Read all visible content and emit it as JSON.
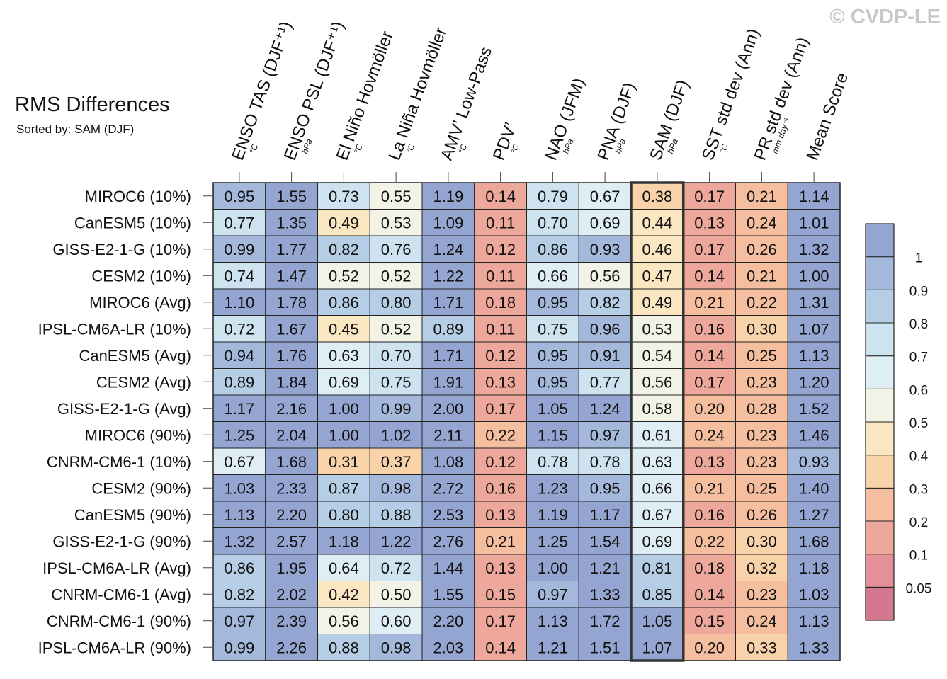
{
  "watermark": "© CVDP-LE",
  "chart_data": {
    "type": "heatmap",
    "title": "RMS Differences",
    "subtitle": "Sorted by: SAM (DJF)",
    "highlight_column": "SAM (DJF)",
    "columns": [
      {
        "name": "ENSO TAS (DJF⁺¹)",
        "unit": "°C"
      },
      {
        "name": "ENSO PSL (DJF⁺¹)",
        "unit": "hPa"
      },
      {
        "name": "El Niño Hovmöller",
        "unit": "°C"
      },
      {
        "name": "La Niña Hovmöller",
        "unit": "°C"
      },
      {
        "name": "AMV’ Low-Pass",
        "unit": "°C"
      },
      {
        "name": "PDV’",
        "unit": "°C"
      },
      {
        "name": "NAO (JFM)",
        "unit": "hPa"
      },
      {
        "name": "PNA (DJF)",
        "unit": "hPa"
      },
      {
        "name": "SAM (DJF)",
        "unit": "hPa"
      },
      {
        "name": "SST std dev (Ann)",
        "unit": "°C"
      },
      {
        "name": "PR std dev (Ann)",
        "unit": "mm day⁻¹"
      },
      {
        "name": "Mean Score",
        "unit": ""
      }
    ],
    "rows": [
      {
        "label": "MIROC6 (10%)",
        "values": [
          0.95,
          1.55,
          0.73,
          0.55,
          1.19,
          0.14,
          0.79,
          0.67,
          0.38,
          0.17,
          0.21,
          1.14
        ]
      },
      {
        "label": "CanESM5 (10%)",
        "values": [
          0.77,
          1.35,
          0.49,
          0.53,
          1.09,
          0.11,
          0.7,
          0.69,
          0.44,
          0.13,
          0.24,
          1.01
        ]
      },
      {
        "label": "GISS-E2-1-G (10%)",
        "values": [
          0.99,
          1.77,
          0.82,
          0.76,
          1.24,
          0.12,
          0.86,
          0.93,
          0.46,
          0.17,
          0.26,
          1.32
        ]
      },
      {
        "label": "CESM2 (10%)",
        "values": [
          0.74,
          1.47,
          0.52,
          0.52,
          1.22,
          0.11,
          0.66,
          0.56,
          0.47,
          0.14,
          0.21,
          1.0
        ]
      },
      {
        "label": "MIROC6 (Avg)",
        "values": [
          1.1,
          1.78,
          0.86,
          0.8,
          1.71,
          0.18,
          0.95,
          0.82,
          0.49,
          0.21,
          0.22,
          1.31
        ]
      },
      {
        "label": "IPSL-CM6A-LR (10%)",
        "values": [
          0.72,
          1.67,
          0.45,
          0.52,
          0.89,
          0.11,
          0.75,
          0.96,
          0.53,
          0.16,
          0.3,
          1.07
        ]
      },
      {
        "label": "CanESM5 (Avg)",
        "values": [
          0.94,
          1.76,
          0.63,
          0.7,
          1.71,
          0.12,
          0.95,
          0.91,
          0.54,
          0.14,
          0.25,
          1.13
        ]
      },
      {
        "label": "CESM2 (Avg)",
        "values": [
          0.89,
          1.84,
          0.69,
          0.75,
          1.91,
          0.13,
          0.95,
          0.77,
          0.56,
          0.17,
          0.23,
          1.2
        ]
      },
      {
        "label": "GISS-E2-1-G (Avg)",
        "values": [
          1.17,
          2.16,
          1.0,
          0.99,
          2.0,
          0.17,
          1.05,
          1.24,
          0.58,
          0.2,
          0.28,
          1.52
        ]
      },
      {
        "label": "MIROC6 (90%)",
        "values": [
          1.25,
          2.04,
          1.0,
          1.02,
          2.11,
          0.22,
          1.15,
          0.97,
          0.61,
          0.24,
          0.23,
          1.46
        ]
      },
      {
        "label": "CNRM-CM6-1 (10%)",
        "values": [
          0.67,
          1.68,
          0.31,
          0.37,
          1.08,
          0.12,
          0.78,
          0.78,
          0.63,
          0.13,
          0.23,
          0.93
        ]
      },
      {
        "label": "CESM2 (90%)",
        "values": [
          1.03,
          2.33,
          0.87,
          0.98,
          2.72,
          0.16,
          1.23,
          0.95,
          0.66,
          0.21,
          0.25,
          1.4
        ]
      },
      {
        "label": "CanESM5 (90%)",
        "values": [
          1.13,
          2.2,
          0.8,
          0.88,
          2.53,
          0.13,
          1.19,
          1.17,
          0.67,
          0.16,
          0.26,
          1.27
        ]
      },
      {
        "label": "GISS-E2-1-G (90%)",
        "values": [
          1.32,
          2.57,
          1.18,
          1.22,
          2.76,
          0.21,
          1.25,
          1.54,
          0.69,
          0.22,
          0.3,
          1.68
        ]
      },
      {
        "label": "IPSL-CM6A-LR (Avg)",
        "values": [
          0.86,
          1.95,
          0.64,
          0.72,
          1.44,
          0.13,
          1.0,
          1.21,
          0.81,
          0.18,
          0.32,
          1.18
        ]
      },
      {
        "label": "CNRM-CM6-1 (Avg)",
        "values": [
          0.82,
          2.02,
          0.42,
          0.5,
          1.55,
          0.15,
          0.97,
          1.33,
          0.85,
          0.14,
          0.23,
          1.03
        ]
      },
      {
        "label": "CNRM-CM6-1 (90%)",
        "values": [
          0.97,
          2.39,
          0.56,
          0.6,
          2.2,
          0.17,
          1.13,
          1.72,
          1.05,
          0.15,
          0.24,
          1.13
        ]
      },
      {
        "label": "IPSL-CM6A-LR (90%)",
        "values": [
          0.99,
          2.26,
          0.88,
          0.98,
          2.03,
          0.14,
          1.21,
          1.51,
          1.07,
          0.2,
          0.33,
          1.33
        ]
      }
    ],
    "colorbar": {
      "bounds": [
        0,
        0.05,
        0.1,
        0.2,
        0.3,
        0.4,
        0.5,
        0.6,
        0.7,
        0.8,
        0.9,
        1,
        3
      ],
      "tick_labels": [
        "0.05",
        "0.1",
        "0.2",
        "0.3",
        "0.4",
        "0.5",
        "0.6",
        "0.7",
        "0.8",
        "0.9",
        "1"
      ],
      "colors": [
        "#d5788f",
        "#e39098",
        "#eea79b",
        "#f4be9f",
        "#f8d3aa",
        "#fbe6c2",
        "#f3f2e6",
        "#dfeef5",
        "#cde3ef",
        "#b6cee5",
        "#a3b8db",
        "#94a5d2"
      ],
      "position": "right"
    }
  }
}
